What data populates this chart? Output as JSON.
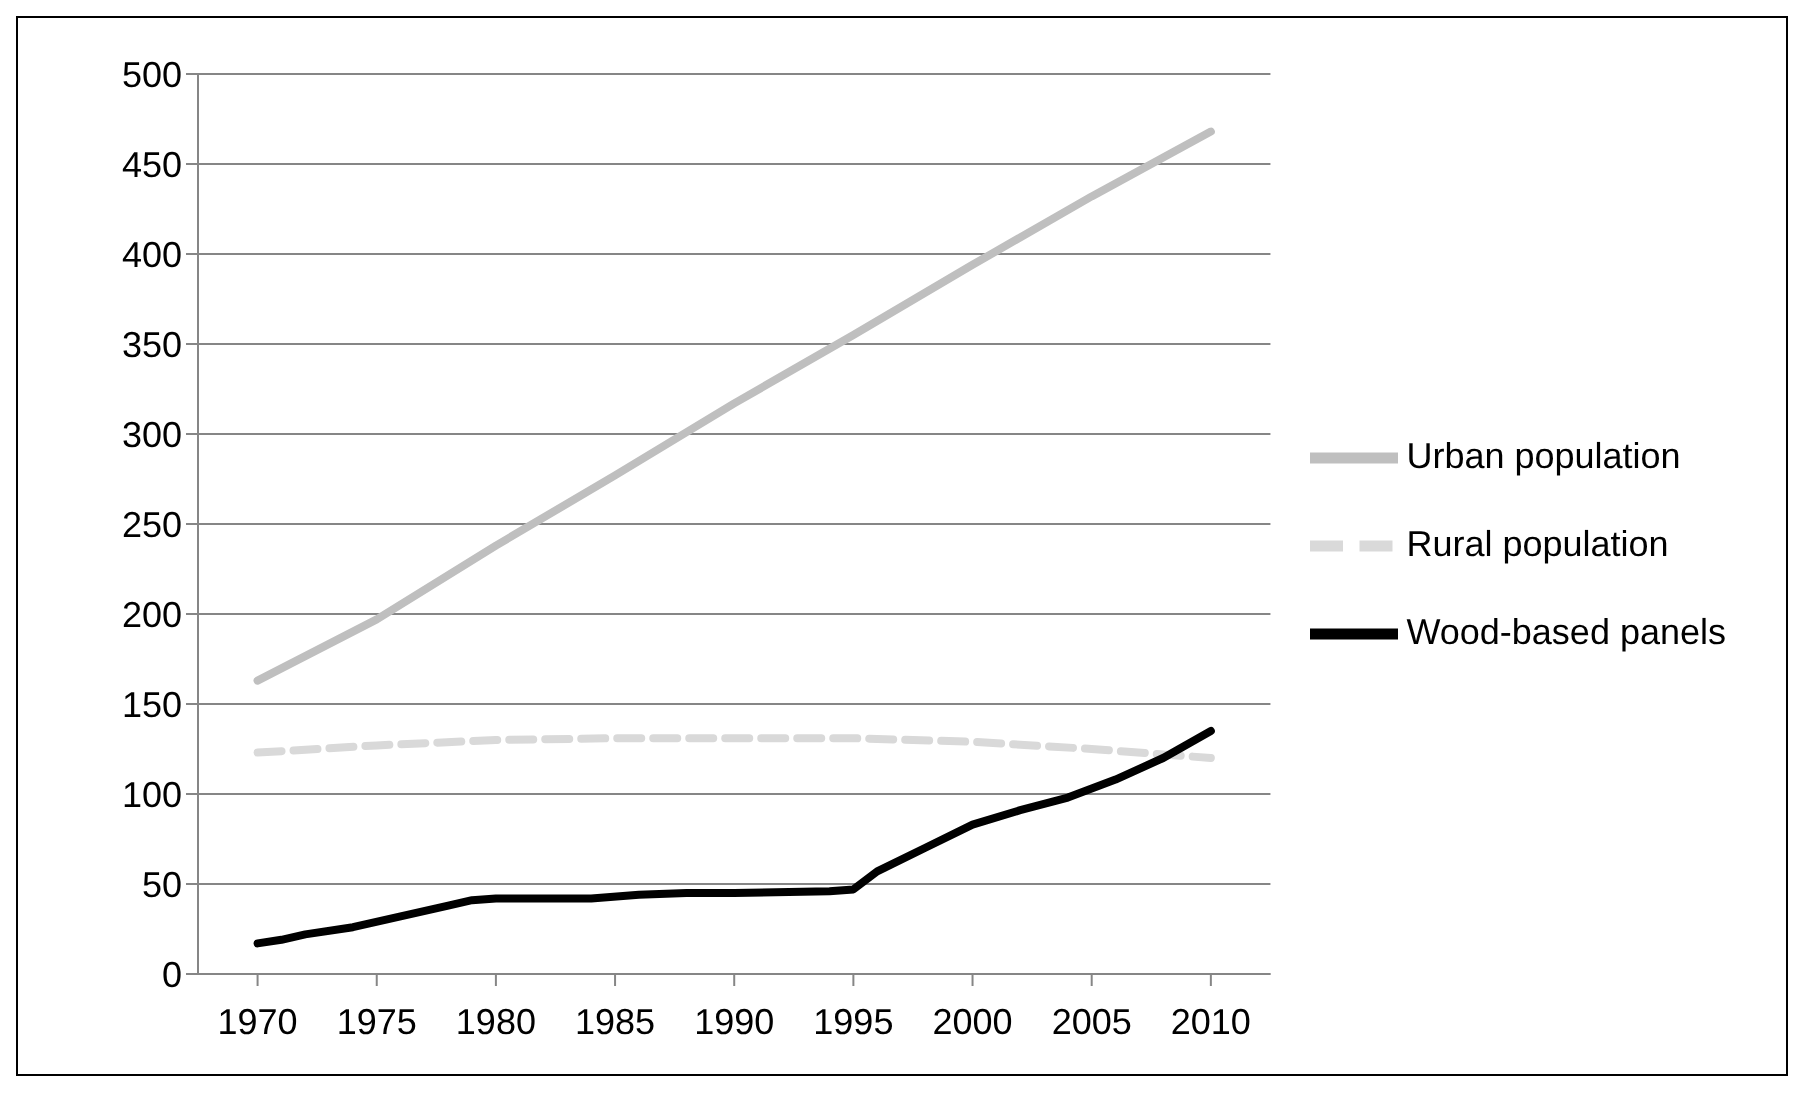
{
  "chart_data": {
    "type": "line",
    "xlim": [
      1967.5,
      2012.5
    ],
    "xticks": [
      1970,
      1975,
      1980,
      1985,
      1990,
      1995,
      2000,
      2005,
      2010
    ],
    "ylim": [
      0,
      500
    ],
    "yticks": [
      0,
      50,
      100,
      150,
      200,
      250,
      300,
      350,
      400,
      450,
      500
    ],
    "grid": "y",
    "legend": "right",
    "marker": "none",
    "series": [
      {
        "name": "Urban population",
        "color": "#bfbfbf",
        "line_style": "solid",
        "x": [
          1970,
          1975,
          1980,
          1985,
          1990,
          1995,
          2000,
          2005,
          2010
        ],
        "values": [
          163,
          197,
          238,
          277,
          317,
          355,
          394,
          432,
          468
        ]
      },
      {
        "name": "Rural population",
        "color": "#d9d9d9",
        "line_style": "dashed",
        "x": [
          1970,
          1975,
          1980,
          1985,
          1990,
          1995,
          2000,
          2005,
          2010
        ],
        "values": [
          123,
          127,
          130,
          131,
          131,
          131,
          129,
          125,
          120
        ]
      },
      {
        "name": "Wood-based panels",
        "color": "#000000",
        "line_style": "solid",
        "x": [
          1970,
          1971,
          1972,
          1974,
          1976,
          1978,
          1979,
          1980,
          1984,
          1986,
          1988,
          1990,
          1994,
          1995,
          1996,
          1998,
          2000,
          2002,
          2004,
          2006,
          2008,
          2010
        ],
        "values": [
          17,
          19,
          22,
          26,
          32,
          38,
          41,
          42,
          42,
          44,
          45,
          45,
          46,
          47,
          57,
          70,
          83,
          91,
          98,
          108,
          120,
          135
        ]
      }
    ]
  }
}
